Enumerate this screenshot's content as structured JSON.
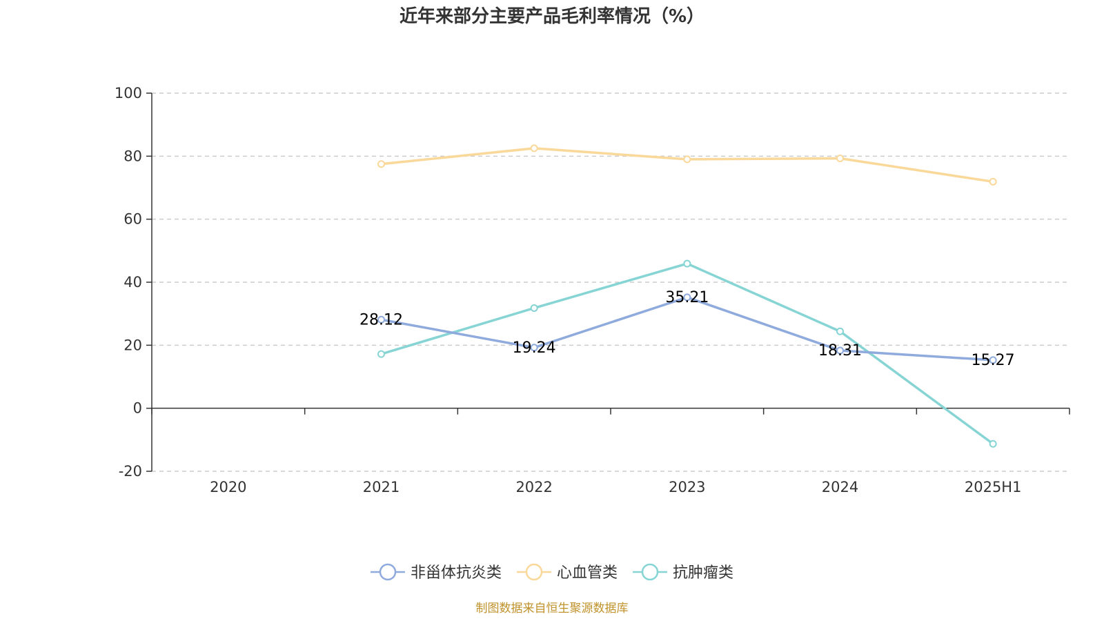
{
  "chart_data": {
    "type": "line",
    "title": "近年来部分主要产品毛利率情况（%）",
    "categories": [
      "2020",
      "2021",
      "2022",
      "2023",
      "2024",
      "2025H1"
    ],
    "ylim": [
      -20,
      100
    ],
    "yticks": [
      100,
      80,
      60,
      40,
      20,
      0,
      -20
    ],
    "grid": true,
    "legend_position": "bottom",
    "series": [
      {
        "name": "非甾体抗炎类",
        "color": "#8FAADC",
        "values": [
          null,
          28.12,
          19.24,
          35.21,
          18.31,
          15.27
        ],
        "labels": [
          "",
          "28.12",
          "19.24",
          "35.21",
          "18.31",
          "15.27"
        ]
      },
      {
        "name": "心血管类",
        "color": "#FAD89A",
        "values": [
          null,
          77.5,
          82.5,
          79.0,
          79.3,
          71.9
        ],
        "labels": []
      },
      {
        "name": "抗肿瘤类",
        "color": "#86D4D4",
        "values": [
          null,
          17.2,
          31.8,
          45.9,
          24.4,
          -11.3
        ],
        "labels": []
      }
    ],
    "source": "制图数据来自恒生聚源数据库",
    "source_color": "#C0922B"
  }
}
